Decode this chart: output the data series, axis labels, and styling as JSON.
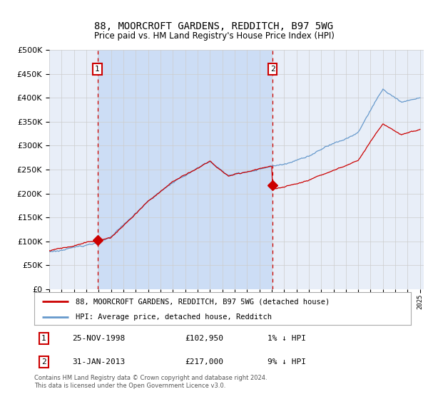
{
  "title": "88, MOORCROFT GARDENS, REDDITCH, B97 5WG",
  "subtitle": "Price paid vs. HM Land Registry's House Price Index (HPI)",
  "legend_line1": "88, MOORCROFT GARDENS, REDDITCH, B97 5WG (detached house)",
  "legend_line2": "HPI: Average price, detached house, Redditch",
  "annotation1_date": "25-NOV-1998",
  "annotation1_price": "£102,950",
  "annotation1_hpi": "1% ↓ HPI",
  "annotation2_date": "31-JAN-2013",
  "annotation2_price": "£217,000",
  "annotation2_hpi": "9% ↓ HPI",
  "footer": "Contains HM Land Registry data © Crown copyright and database right 2024.\nThis data is licensed under the Open Government Licence v3.0.",
  "hpi_color": "#6699cc",
  "price_color": "#cc0000",
  "marker_color": "#cc0000",
  "shade_color": "#ccddf5",
  "plot_bg": "#e8eef8",
  "grid_color": "#cccccc",
  "ylim": [
    0,
    500000
  ],
  "yticks": [
    0,
    50000,
    100000,
    150000,
    200000,
    250000,
    300000,
    350000,
    400000,
    450000,
    500000
  ],
  "transaction1_year": 1998.9,
  "transaction2_year": 2013.08,
  "transaction1_price": 102950,
  "transaction2_price": 217000
}
